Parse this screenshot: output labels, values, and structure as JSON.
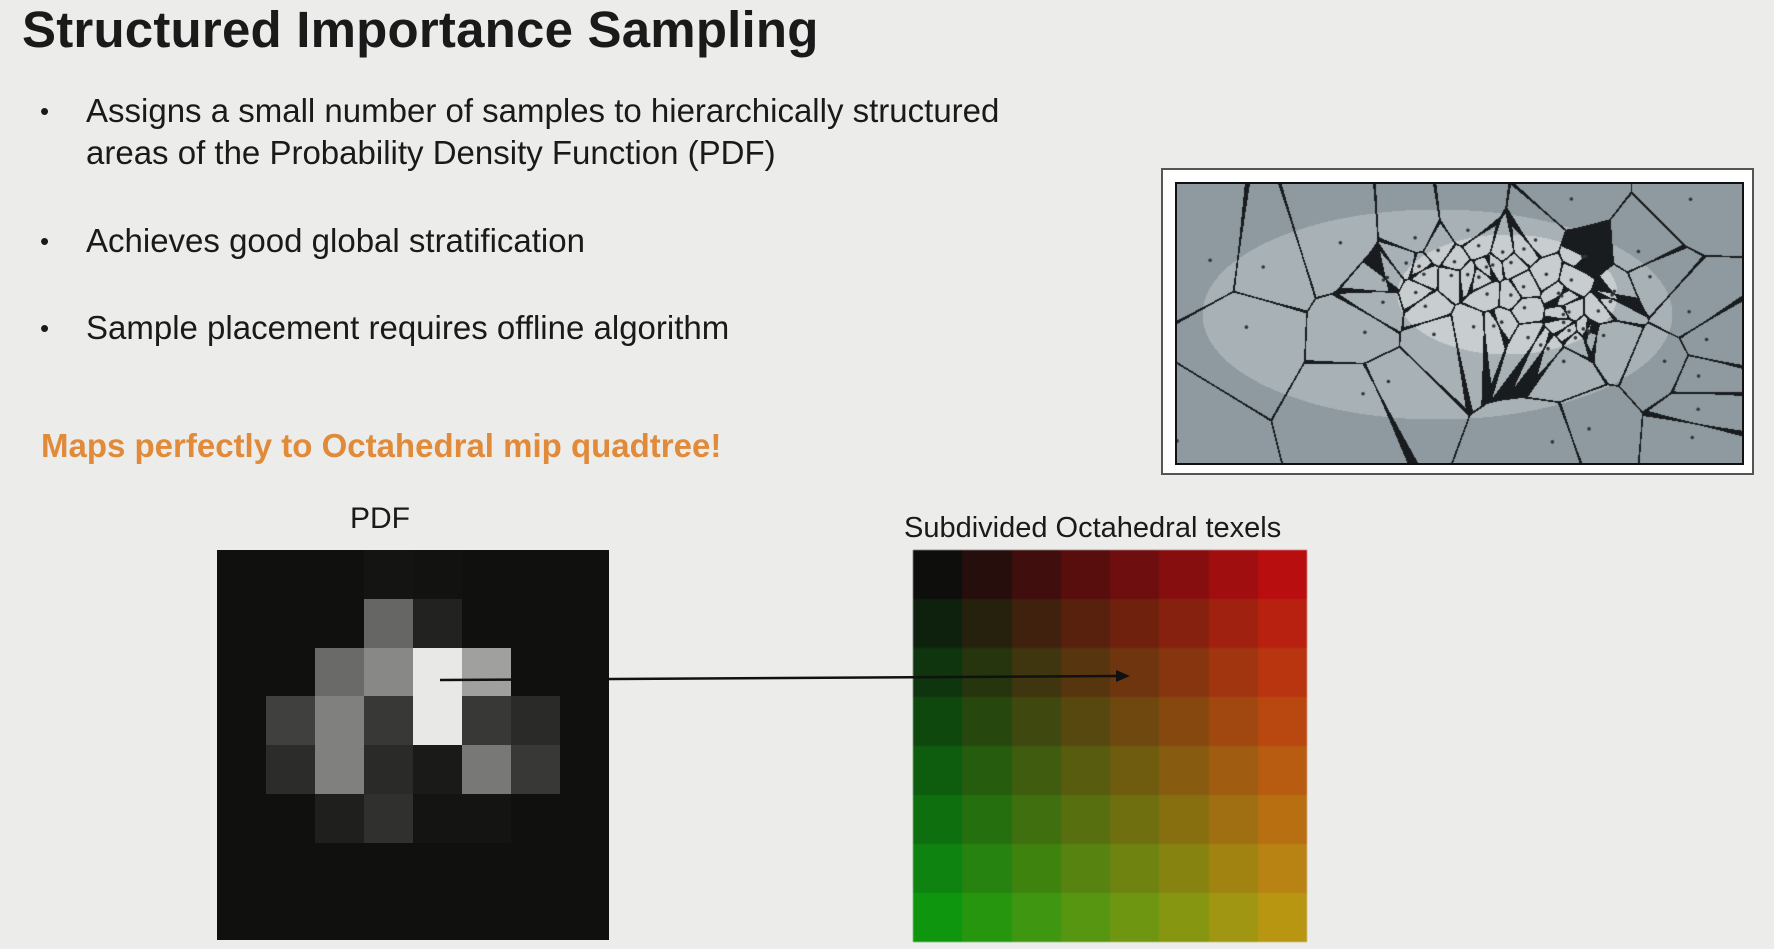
{
  "slide": {
    "title": "Structured Importance Sampling",
    "bullets": [
      {
        "line1": "Assigns a small number of samples to hierarchically structured",
        "line2": "areas of the Probability Density Function (PDF)"
      },
      {
        "line1": "Achieves good global stratification"
      },
      {
        "line1": "Sample placement requires offline algorithm"
      }
    ],
    "bullet_glyph": "•",
    "highlight": "Maps perfectly to Octahedral mip quadtree!",
    "highlight_color": "#e08a3a",
    "pdf_label": "PDF",
    "texels_label": "Subdivided Octahedral texels",
    "pdf_grid_gray": [
      [
        16,
        16,
        16,
        20,
        18,
        16,
        16,
        16
      ],
      [
        16,
        16,
        16,
        102,
        34,
        16,
        16,
        16
      ],
      [
        16,
        16,
        106,
        136,
        232,
        160,
        16,
        16
      ],
      [
        16,
        64,
        128,
        56,
        232,
        56,
        42,
        16
      ],
      [
        16,
        44,
        128,
        42,
        26,
        120,
        56,
        16
      ],
      [
        16,
        16,
        31,
        48,
        20,
        20,
        16,
        16
      ],
      [
        16,
        16,
        16,
        16,
        16,
        16,
        16,
        16
      ],
      [
        16,
        16,
        16,
        16,
        16,
        16,
        16,
        16
      ]
    ]
  }
}
